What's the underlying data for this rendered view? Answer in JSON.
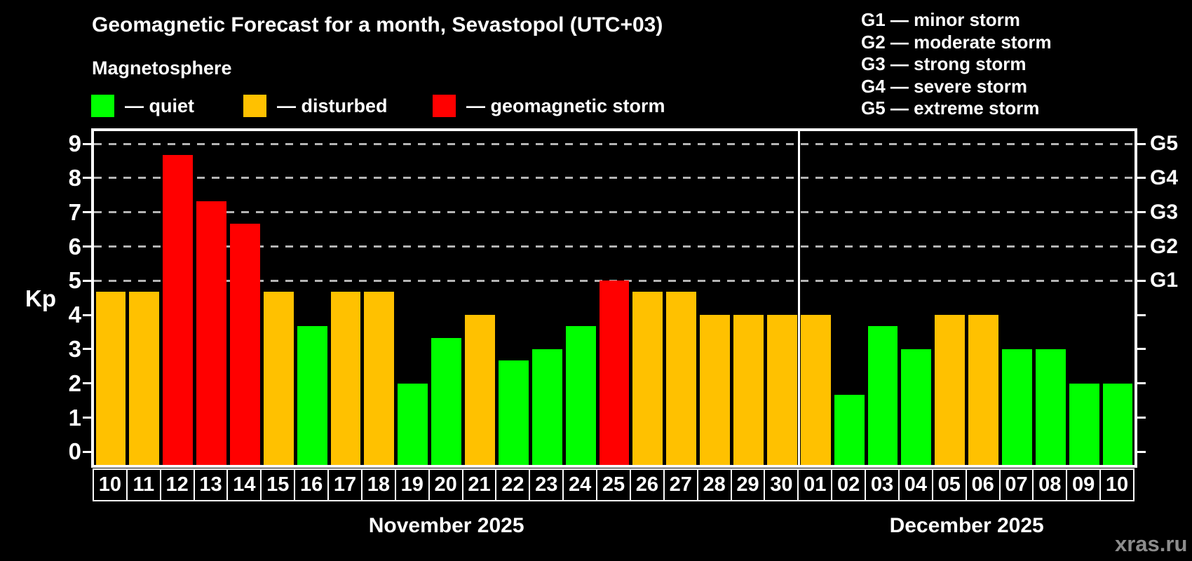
{
  "header": {
    "title": "Geomagnetic Forecast for a month, Sevastopol (UTC+03)",
    "subtitle": "Magnetosphere"
  },
  "legend": {
    "items": [
      {
        "key": "quiet",
        "label": "— quiet",
        "color": "#00ff00"
      },
      {
        "key": "disturbed",
        "label": "— disturbed",
        "color": "#ffc100"
      },
      {
        "key": "storm",
        "label": "— geomagnetic storm",
        "color": "#ff0000"
      }
    ]
  },
  "storm_scale": {
    "items": [
      "G1 — minor storm",
      "G2 — moderate storm",
      "G3 — strong storm",
      "G4 — severe storm",
      "G5 — extreme storm"
    ]
  },
  "chart_data": {
    "type": "bar",
    "y_axis_label": "Kp",
    "ylim": [
      -0.38,
      9.37
    ],
    "y_ticks": [
      0,
      1,
      2,
      3,
      4,
      5,
      6,
      7,
      8,
      9
    ],
    "gridlines_at": [
      5,
      6,
      7,
      8,
      9
    ],
    "grid_style": "dashed",
    "right_axis_labels": [
      {
        "label": "G1",
        "kp": 5
      },
      {
        "label": "G2",
        "kp": 6
      },
      {
        "label": "G3",
        "kp": 7
      },
      {
        "label": "G4",
        "kp": 8
      },
      {
        "label": "G5",
        "kp": 9
      }
    ],
    "colors": {
      "quiet": "#00ff00",
      "disturbed": "#ffc100",
      "storm": "#ff0000"
    },
    "days": [
      {
        "day": "10",
        "kp": 4.67,
        "status": "disturbed"
      },
      {
        "day": "11",
        "kp": 4.67,
        "status": "disturbed"
      },
      {
        "day": "12",
        "kp": 8.67,
        "status": "storm"
      },
      {
        "day": "13",
        "kp": 7.33,
        "status": "storm"
      },
      {
        "day": "14",
        "kp": 6.67,
        "status": "storm"
      },
      {
        "day": "15",
        "kp": 4.67,
        "status": "disturbed"
      },
      {
        "day": "16",
        "kp": 3.67,
        "status": "quiet"
      },
      {
        "day": "17",
        "kp": 4.67,
        "status": "disturbed"
      },
      {
        "day": "18",
        "kp": 4.67,
        "status": "disturbed"
      },
      {
        "day": "19",
        "kp": 2.0,
        "status": "quiet"
      },
      {
        "day": "20",
        "kp": 3.33,
        "status": "quiet"
      },
      {
        "day": "21",
        "kp": 4.0,
        "status": "disturbed"
      },
      {
        "day": "22",
        "kp": 2.67,
        "status": "quiet"
      },
      {
        "day": "23",
        "kp": 3.0,
        "status": "quiet"
      },
      {
        "day": "24",
        "kp": 3.67,
        "status": "quiet"
      },
      {
        "day": "25",
        "kp": 5.0,
        "status": "storm"
      },
      {
        "day": "26",
        "kp": 4.67,
        "status": "disturbed"
      },
      {
        "day": "27",
        "kp": 4.67,
        "status": "disturbed"
      },
      {
        "day": "28",
        "kp": 4.0,
        "status": "disturbed"
      },
      {
        "day": "29",
        "kp": 4.0,
        "status": "disturbed"
      },
      {
        "day": "30",
        "kp": 4.0,
        "status": "disturbed"
      },
      {
        "day": "01",
        "kp": 4.0,
        "status": "disturbed"
      },
      {
        "day": "02",
        "kp": 1.67,
        "status": "quiet"
      },
      {
        "day": "03",
        "kp": 3.67,
        "status": "quiet"
      },
      {
        "day": "04",
        "kp": 3.0,
        "status": "quiet"
      },
      {
        "day": "05",
        "kp": 4.0,
        "status": "disturbed"
      },
      {
        "day": "06",
        "kp": 4.0,
        "status": "disturbed"
      },
      {
        "day": "07",
        "kp": 3.0,
        "status": "quiet"
      },
      {
        "day": "08",
        "kp": 3.0,
        "status": "quiet"
      },
      {
        "day": "09",
        "kp": 2.0,
        "status": "quiet"
      },
      {
        "day": "10",
        "kp": 2.0,
        "status": "quiet"
      }
    ],
    "months": [
      {
        "label": "November 2025",
        "from_index": 0,
        "to_index": 20
      },
      {
        "label": "December 2025",
        "from_index": 21,
        "to_index": 30
      }
    ]
  },
  "footer": {
    "watermark": "xras.ru"
  }
}
